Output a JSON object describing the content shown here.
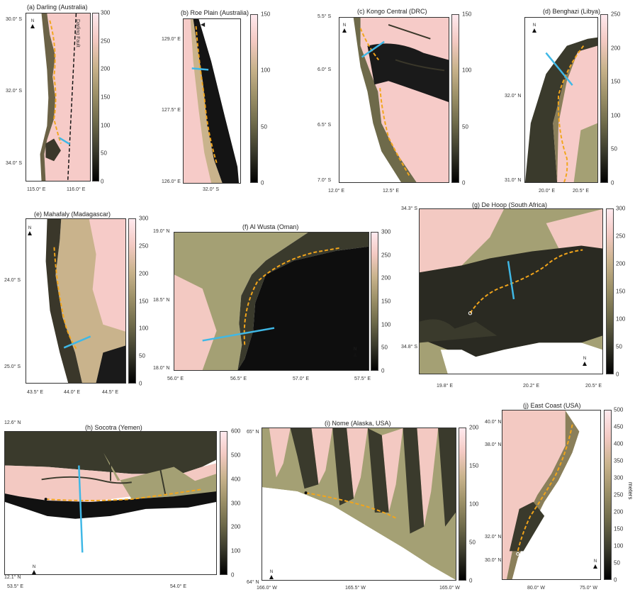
{
  "panels": [
    {
      "id": "a",
      "title": "(a) Darling (Australia)",
      "ylabels": [
        "30.0° S",
        "32.0° S",
        "34.0° S"
      ],
      "xlabels": [
        "115.0° E",
        "116.0° E"
      ],
      "cbar": [
        "300",
        "250",
        "200",
        "150",
        "100",
        "50",
        "0"
      ],
      "annot": "Darling Fault"
    },
    {
      "id": "b",
      "title": "(b) Roe Plain (Australia)",
      "ylabels": [
        "129.0° E",
        "127.5° E",
        "126.0° E"
      ],
      "xlabels": [
        "32.0° S"
      ],
      "cbar": [
        "150",
        "100",
        "50",
        "0"
      ]
    },
    {
      "id": "c",
      "title": "(c) Kongo Central (DRC)",
      "ylabels": [
        "5.5° S",
        "6.0° S",
        "6.5° S",
        "7.0° S"
      ],
      "xlabels": [
        "12.0° E",
        "12.5° E"
      ],
      "cbar": [
        "150",
        "100",
        "50",
        "0"
      ]
    },
    {
      "id": "d",
      "title": "(d) Benghazi (Libya)",
      "ylabels": [
        "32.0° N",
        "31.0° N"
      ],
      "xlabels": [
        "20.0° E",
        "20.5° E"
      ],
      "cbar": [
        "250",
        "200",
        "150",
        "100",
        "50",
        "0"
      ]
    },
    {
      "id": "e",
      "title": "(e) Mahafaly (Madagascar)",
      "ylabels": [
        "24.0° S",
        "25.0° S"
      ],
      "xlabels": [
        "43.5° E",
        "44.0° E",
        "44.5° E"
      ],
      "cbar": [
        "300",
        "250",
        "200",
        "150",
        "100",
        "50",
        "0"
      ]
    },
    {
      "id": "f",
      "title": "(f) Al Wusta (Oman)",
      "ylabels": [
        "19.0° N",
        "18.5° N",
        "18.0° N"
      ],
      "xlabels": [
        "56.0° E",
        "56.5° E",
        "57.0° E",
        "57.5° E"
      ],
      "cbar": [
        "300",
        "250",
        "200",
        "150",
        "100",
        "50",
        "0"
      ]
    },
    {
      "id": "g",
      "title": "(g) De Hoop (South Africa)",
      "ylabels": [
        "34.3° S",
        "34.8° S"
      ],
      "xlabels": [
        "19.8° E",
        "20.2° E",
        "20.5° E"
      ],
      "cbar": [
        "300",
        "250",
        "200",
        "150",
        "100",
        "50",
        "0"
      ]
    },
    {
      "id": "h",
      "title": "(h) Socotra (Yemen)",
      "ylabels": [
        "12.6° N",
        "12.1° N"
      ],
      "xlabels": [
        "53.5° E",
        "54.0° E"
      ],
      "cbar": [
        "600",
        "500",
        "400",
        "300",
        "200",
        "100",
        "0"
      ]
    },
    {
      "id": "i",
      "title": "(i) Nome (Alaska, USA)",
      "ylabels": [
        "65° N",
        "64° N"
      ],
      "xlabels": [
        "166.0° W",
        "165.5° W",
        "165.0° W"
      ],
      "cbar": [
        "200",
        "150",
        "100",
        "50",
        "0"
      ]
    },
    {
      "id": "j",
      "title": "(j) East Coast (USA)",
      "ylabels": [
        "40.0° N",
        "38.0° N",
        "32.0° N",
        "30.0° N"
      ],
      "xlabels": [
        "80.0° W",
        "75.0° W"
      ],
      "cbar": [
        "500",
        "450",
        "400",
        "350",
        "300",
        "250",
        "200",
        "150",
        "100",
        "50",
        "0"
      ],
      "unit": "meters"
    }
  ],
  "north_label": "N",
  "colors": {
    "shoreline": "#f2a51b",
    "transect": "#3fb8e6"
  }
}
